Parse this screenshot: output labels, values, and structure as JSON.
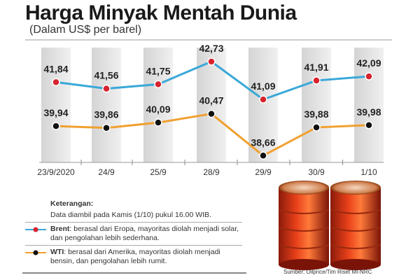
{
  "title": "Harga Minyak Mentah Dunia",
  "subtitle": "(Dalam US$ per barel)",
  "chart_data": {
    "type": "line",
    "title": "Harga Minyak Mentah Dunia",
    "subtitle": "(Dalam US$ per barel)",
    "categories": [
      "23/9/2020",
      "24/9",
      "25/9",
      "28/9",
      "29/9",
      "30/9",
      "1/10"
    ],
    "series": [
      {
        "name": "Brent",
        "values": [
          41.84,
          41.56,
          41.75,
          42.73,
          41.09,
          41.91,
          42.09
        ],
        "labels": [
          "41,84",
          "41,56",
          "41,75",
          "42,73",
          "41,09",
          "41,91",
          "42,09"
        ],
        "line_color": "#3aa8d8",
        "marker_color": "#d7232e"
      },
      {
        "name": "WTI",
        "values": [
          39.94,
          39.86,
          40.09,
          40.47,
          38.66,
          39.88,
          39.98
        ],
        "labels": [
          "39,94",
          "39,86",
          "40,09",
          "40,47",
          "38,66",
          "39,88",
          "39,98"
        ],
        "line_color": "#f0a030",
        "marker_color": "#111111"
      }
    ],
    "grid": false,
    "legend": "bottom-left"
  },
  "legend": {
    "heading": "Keterangan:",
    "note": "Data diambil pada Kamis (1/10) pukul 16.00 WIB.",
    "brent_name": "Brent",
    "brent_text": ": berasal dari Eropa, mayoritas diolah menjadi solar, dan pengolahan lebih sederhana.",
    "wti_name": "WTI",
    "wti_text": ": berasal dari Amerika, mayoritas diolah menjadi bensin, dan pengolahan lebih rumit."
  },
  "source": "Sumber: Oilprice/Tim Riset MI-NRC"
}
